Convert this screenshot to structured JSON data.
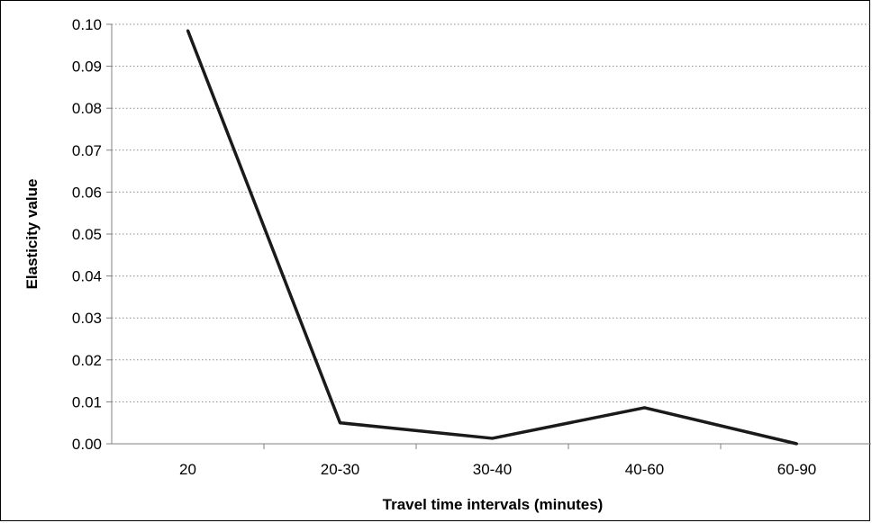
{
  "chart_data": {
    "type": "line",
    "title": "",
    "xlabel": "Travel time intervals (minutes)",
    "ylabel": "Elasticity value",
    "categories": [
      "20",
      "20-30",
      "30-40",
      "40-60",
      "60-90"
    ],
    "series": [
      {
        "values": [
          0.0985,
          0.005,
          0.0013,
          0.0086,
          0.0
        ]
      }
    ],
    "ylim": [
      0,
      0.1
    ],
    "yticks": [
      "0.00",
      "0.01",
      "0.02",
      "0.03",
      "0.04",
      "0.05",
      "0.06",
      "0.07",
      "0.08",
      "0.09",
      "0.10"
    ],
    "grid": "horizontal dotted",
    "line_color": "#1a1a1a",
    "legend": "none"
  }
}
